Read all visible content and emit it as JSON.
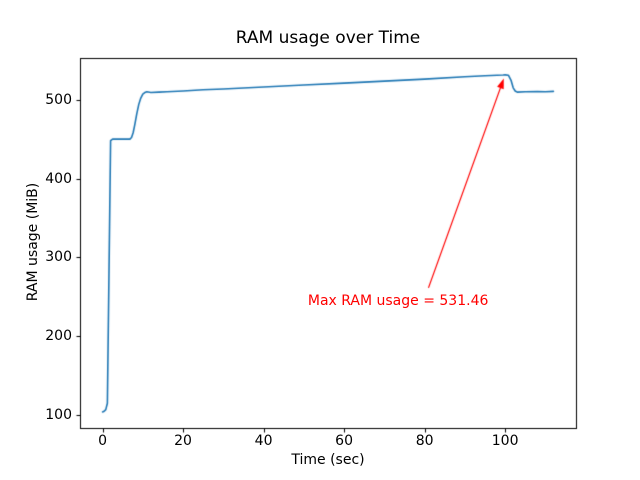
{
  "chart_data": {
    "type": "line",
    "title": "RAM usage over Time",
    "xlabel": "Time (sec)",
    "ylabel": "RAM usage (MiB)",
    "xlim": [
      -5.6,
      117.6
    ],
    "ylim": [
      83.7,
      552.8
    ],
    "xticks": [
      0,
      20,
      40,
      60,
      80,
      100
    ],
    "yticks": [
      100,
      200,
      300,
      400,
      500
    ],
    "grid": false,
    "legend": "none",
    "line_color": "#1f77b4",
    "axes_color": "#000000",
    "series": [
      {
        "name": "RAM usage",
        "x": [
          0,
          0.4,
          0.8,
          1.2,
          1.6,
          2.0,
          2.5,
          3,
          4,
          5,
          6,
          6.8,
          7.2,
          7.6,
          8,
          8.5,
          9,
          9.5,
          10,
          10.5,
          11,
          12,
          14,
          16,
          20,
          25,
          30,
          40,
          50,
          60,
          70,
          80,
          90,
          95,
          98,
          99.5,
          100,
          100.8,
          101.5,
          102,
          102.5,
          103,
          105,
          108,
          110,
          112
        ],
        "y": [
          104,
          105,
          107,
          115,
          280,
          448,
          450,
          450,
          450,
          450,
          450,
          450,
          452,
          458,
          468,
          482,
          494,
          502,
          507,
          509,
          510,
          509,
          509.5,
          510,
          511,
          512.5,
          513.5,
          516,
          518.5,
          521,
          523.5,
          526,
          529,
          530.2,
          531,
          531.3,
          531.46,
          531,
          524,
          515,
          511,
          509.5,
          510,
          510.3,
          510,
          510.5
        ]
      }
    ],
    "annotation": {
      "text": "Max RAM usage = 531.46",
      "color": "#ff0000",
      "point": [
        100,
        531.46
      ],
      "text_pos": [
        51,
        240
      ],
      "arrow_tail": [
        81,
        262
      ],
      "max_value": 531.46
    }
  }
}
